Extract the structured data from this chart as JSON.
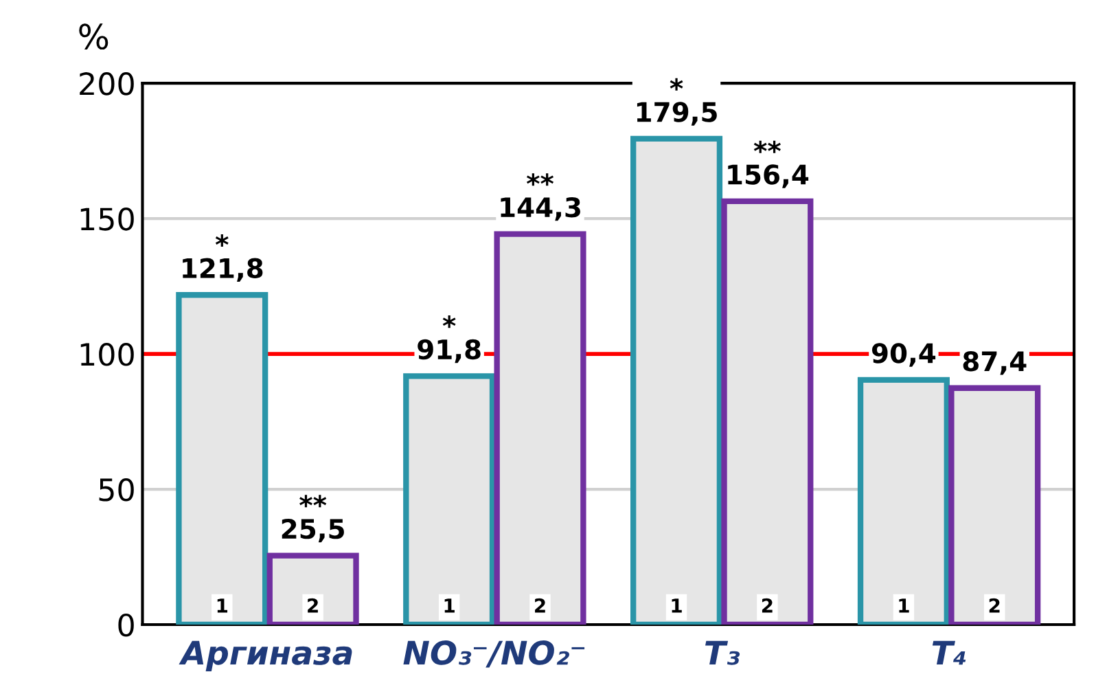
{
  "chart_data": {
    "type": "bar",
    "ylabel": "%",
    "categories": [
      "Аргиназа",
      "NO₃⁻/NO₂⁻",
      "T₃",
      "T₄"
    ],
    "series": [
      {
        "name": "1",
        "color": "#2a95a8",
        "values": [
          121.8,
          91.8,
          179.5,
          90.4
        ],
        "value_labels": [
          "*\n121,8",
          "*\n91,8",
          "*\n179,5",
          "90,4"
        ]
      },
      {
        "name": "2",
        "color": "#7030a0",
        "values": [
          25.5,
          144.3,
          156.4,
          87.4
        ],
        "value_labels": [
          "**\n25,5",
          "**\n144,3",
          "**\n156,4",
          "87,4"
        ]
      }
    ],
    "ylim": [
      0,
      200
    ],
    "yticks": [
      0,
      50,
      100,
      150,
      200
    ],
    "grid": "y",
    "ref_lines": [
      {
        "axis": "y",
        "value": 100,
        "color": "#ff0000"
      }
    ]
  }
}
